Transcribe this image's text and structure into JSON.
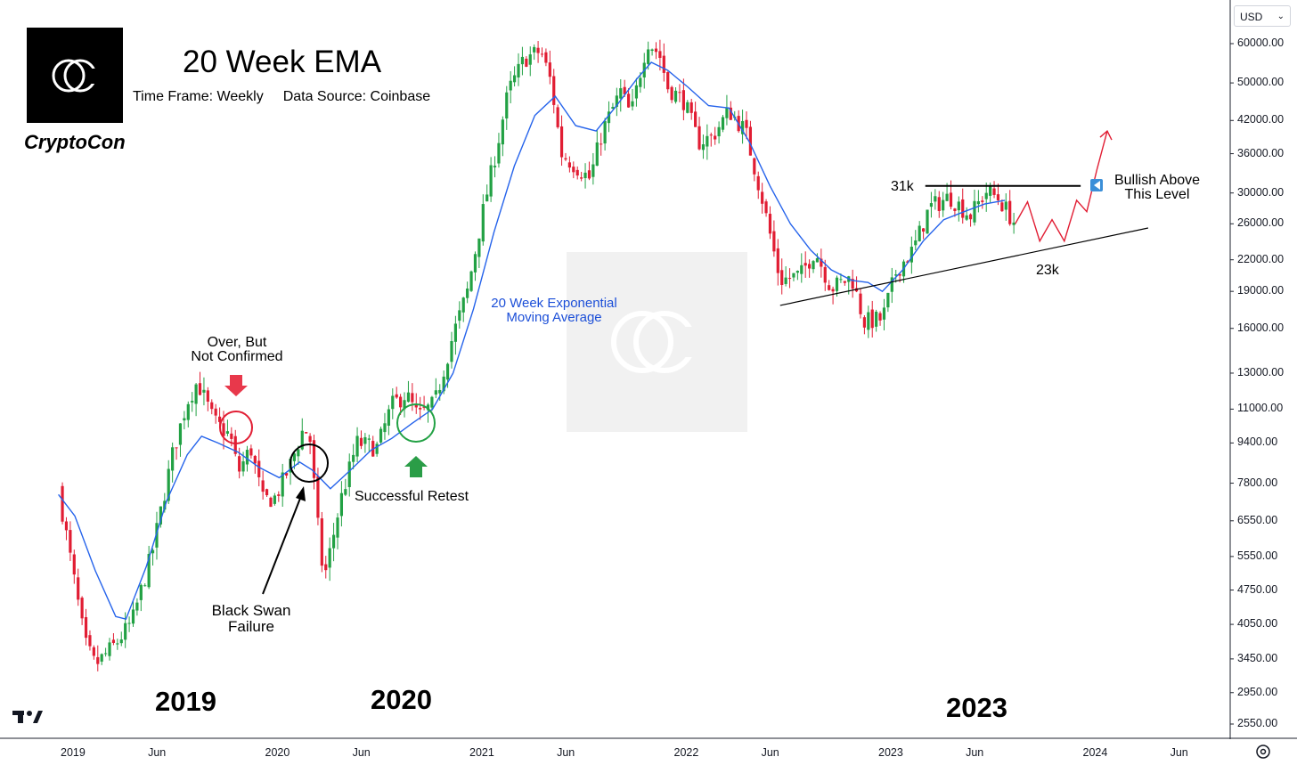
{
  "header": {
    "brand_name": "CryptoCon",
    "title": "20 Week EMA",
    "time_frame": "Time Frame: Weekly",
    "data_source": "Data Source: Coinbase",
    "logo_icon": "cryptocon-logo-icon"
  },
  "toolbar": {
    "currency": "USD"
  },
  "chart_data": {
    "type": "candlestick",
    "symbol_scale": "log",
    "y_ticks": [
      60000,
      50000,
      42000,
      36000,
      30000,
      26000,
      22000,
      19000,
      16000,
      13000,
      11000,
      9400,
      7800,
      6550,
      5550,
      4750,
      4050,
      3450,
      2950,
      2550
    ],
    "y_tick_labels": [
      "60000.00",
      "50000.00",
      "42000.00",
      "36000.00",
      "30000.00",
      "26000.00",
      "22000.00",
      "19000.00",
      "16000.00",
      "13000.00",
      "11000.00",
      "9400.00",
      "7800.00",
      "6550.00",
      "5550.00",
      "4750.00",
      "4050.00",
      "3450.00",
      "2950.00",
      "2550.00"
    ],
    "x_ticks": [
      "2019",
      "Jun",
      "2020",
      "Jun",
      "2021",
      "Jun",
      "2022",
      "Jun",
      "2023",
      "Jun",
      "2024",
      "Jun"
    ],
    "year_labels": [
      "2019",
      "2020",
      "2023"
    ],
    "price_path": [
      [
        2018.92,
        7600
      ],
      [
        2019.05,
        3700
      ],
      [
        2019.1,
        3350
      ],
      [
        2019.2,
        3700
      ],
      [
        2019.28,
        4100
      ],
      [
        2019.38,
        5700
      ],
      [
        2019.48,
        9000
      ],
      [
        2019.55,
        11400
      ],
      [
        2019.6,
        12500
      ],
      [
        2019.68,
        10400
      ],
      [
        2019.76,
        9700
      ],
      [
        2019.8,
        8200
      ],
      [
        2019.86,
        9200
      ],
      [
        2019.92,
        7200
      ],
      [
        2019.98,
        7300
      ],
      [
        2020.05,
        8400
      ],
      [
        2020.12,
        10100
      ],
      [
        2020.15,
        9600
      ],
      [
        2020.2,
        5700
      ],
      [
        2020.22,
        5000
      ],
      [
        2020.3,
        7200
      ],
      [
        2020.38,
        9400
      ],
      [
        2020.48,
        9200
      ],
      [
        2020.55,
        11200
      ],
      [
        2020.62,
        11800
      ],
      [
        2020.68,
        10600
      ],
      [
        2020.76,
        11300
      ],
      [
        2020.85,
        15500
      ],
      [
        2020.92,
        19000
      ],
      [
        2021.0,
        28000
      ],
      [
        2021.07,
        38000
      ],
      [
        2021.12,
        48000
      ],
      [
        2021.2,
        56000
      ],
      [
        2021.28,
        58000
      ],
      [
        2021.33,
        50000
      ],
      [
        2021.38,
        36000
      ],
      [
        2021.45,
        34000
      ],
      [
        2021.52,
        32000
      ],
      [
        2021.58,
        40000
      ],
      [
        2021.67,
        48000
      ],
      [
        2021.72,
        43000
      ],
      [
        2021.8,
        61000
      ],
      [
        2021.86,
        57000
      ],
      [
        2021.9,
        49000
      ],
      [
        2021.98,
        46000
      ],
      [
        2022.05,
        38000
      ],
      [
        2022.12,
        39000
      ],
      [
        2022.2,
        44000
      ],
      [
        2022.28,
        40000
      ],
      [
        2022.36,
        29500
      ],
      [
        2022.45,
        20000
      ],
      [
        2022.55,
        20500
      ],
      [
        2022.62,
        23000
      ],
      [
        2022.7,
        19300
      ],
      [
        2022.8,
        20300
      ],
      [
        2022.86,
        16500
      ],
      [
        2022.95,
        16700
      ],
      [
        2023.02,
        21000
      ],
      [
        2023.1,
        23000
      ],
      [
        2023.18,
        28000
      ],
      [
        2023.28,
        29500
      ],
      [
        2023.38,
        27000
      ],
      [
        2023.46,
        30300
      ],
      [
        2023.52,
        29200
      ],
      [
        2023.6,
        26000
      ]
    ],
    "ema_path": [
      [
        2018.92,
        7400
      ],
      [
        2019.0,
        6700
      ],
      [
        2019.1,
        5200
      ],
      [
        2019.2,
        4200
      ],
      [
        2019.25,
        4150
      ],
      [
        2019.35,
        5300
      ],
      [
        2019.45,
        7200
      ],
      [
        2019.55,
        8900
      ],
      [
        2019.62,
        9700
      ],
      [
        2019.7,
        9400
      ],
      [
        2019.8,
        9000
      ],
      [
        2019.9,
        8400
      ],
      [
        2020.0,
        8000
      ],
      [
        2020.1,
        8600
      ],
      [
        2020.16,
        8300
      ],
      [
        2020.25,
        7600
      ],
      [
        2020.35,
        8300
      ],
      [
        2020.45,
        9100
      ],
      [
        2020.55,
        9600
      ],
      [
        2020.65,
        10300
      ],
      [
        2020.75,
        11000
      ],
      [
        2020.85,
        13000
      ],
      [
        2020.95,
        17500
      ],
      [
        2021.05,
        25000
      ],
      [
        2021.15,
        34000
      ],
      [
        2021.25,
        43000
      ],
      [
        2021.35,
        47000
      ],
      [
        2021.45,
        41000
      ],
      [
        2021.55,
        40000
      ],
      [
        2021.65,
        45000
      ],
      [
        2021.75,
        51000
      ],
      [
        2021.82,
        55000
      ],
      [
        2021.9,
        53000
      ],
      [
        2022.0,
        49000
      ],
      [
        2022.1,
        45000
      ],
      [
        2022.2,
        44500
      ],
      [
        2022.3,
        38000
      ],
      [
        2022.4,
        31000
      ],
      [
        2022.5,
        26000
      ],
      [
        2022.6,
        23000
      ],
      [
        2022.7,
        21000
      ],
      [
        2022.8,
        20000
      ],
      [
        2022.88,
        19800
      ],
      [
        2022.95,
        19000
      ],
      [
        2023.05,
        21000
      ],
      [
        2023.15,
        24000
      ],
      [
        2023.25,
        26500
      ],
      [
        2023.35,
        27500
      ],
      [
        2023.45,
        28500
      ],
      [
        2023.55,
        29000
      ]
    ],
    "projection_path": [
      [
        2023.6,
        26000
      ],
      [
        2023.66,
        28800
      ],
      [
        2023.72,
        24000
      ],
      [
        2023.78,
        26500
      ],
      [
        2023.84,
        24000
      ],
      [
        2023.9,
        29000
      ],
      [
        2023.95,
        27500
      ],
      [
        2024.0,
        33500
      ],
      [
        2024.05,
        40000
      ]
    ],
    "resistance": {
      "from": 2023.16,
      "to": 2023.92,
      "price": 31000,
      "label": "31k"
    },
    "support": {
      "from": 2022.45,
      "to": 2024.25,
      "start_price": 17800,
      "end_price": 25500,
      "label": "23k"
    },
    "annotations": {
      "over_not_confirmed": "Over, But\nNot Confirmed",
      "black_swan": "Black Swan\nFailure",
      "successful_retest": "Successful Retest",
      "ema_label": "20 Week Exponential\nMoving Average",
      "bullish": "Bullish Above\nThis Level"
    },
    "colors": {
      "up": "#22a144",
      "down": "#e11d33",
      "ema": "#2563eb",
      "projection": "#e11d33",
      "circle_red": "#e11d33",
      "circle_black": "#000000",
      "circle_green": "#22a144"
    }
  }
}
